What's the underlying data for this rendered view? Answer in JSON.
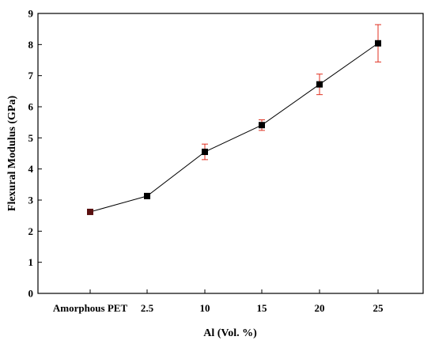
{
  "chart_data": {
    "type": "line",
    "title": "",
    "xlabel": "Al (Vol. %)",
    "ylabel": "Flexural Modulus (GPa)",
    "categories": [
      "Amorphous PET",
      "2.5",
      "10",
      "15",
      "20",
      "25"
    ],
    "ylim": [
      0,
      9
    ],
    "yticks": [
      "0",
      "1",
      "2",
      "3",
      "4",
      "5",
      "6",
      "7",
      "8",
      "9"
    ],
    "grid": false,
    "series": [
      {
        "values": [
          2.62,
          3.13,
          4.55,
          5.41,
          6.72,
          8.04
        ],
        "error": [
          0.05,
          0.05,
          0.25,
          0.17,
          0.33,
          0.6
        ],
        "line_color": "#000000",
        "marker_color": "#000000",
        "first_marker_color": "#5a1010",
        "error_color": "#e03020"
      }
    ]
  }
}
